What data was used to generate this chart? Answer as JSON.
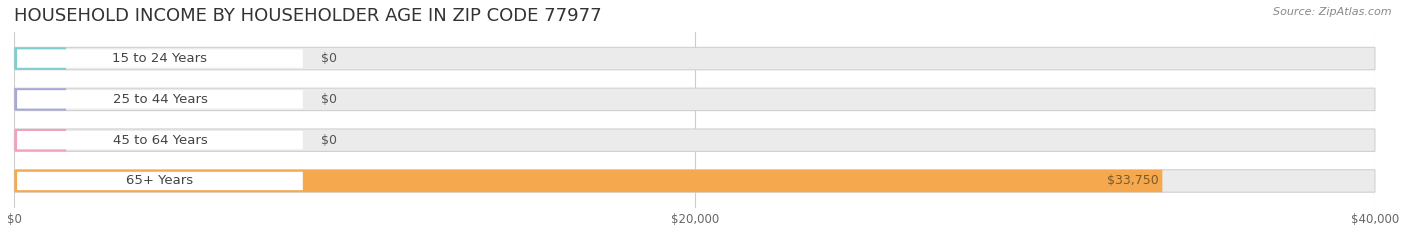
{
  "title": "HOUSEHOLD INCOME BY HOUSEHOLDER AGE IN ZIP CODE 77977",
  "source": "Source: ZipAtlas.com",
  "categories": [
    "15 to 24 Years",
    "25 to 44 Years",
    "45 to 64 Years",
    "65+ Years"
  ],
  "values": [
    0,
    0,
    0,
    33750
  ],
  "bar_colors": [
    "#7dcfcf",
    "#a8a8d8",
    "#f2a0bc",
    "#f5a84e"
  ],
  "background_color": "#ffffff",
  "bar_background_color": "#ebebeb",
  "bar_border_color": "#d0d0d0",
  "xlim": [
    0,
    40000
  ],
  "xticks": [
    0,
    20000,
    40000
  ],
  "xtick_labels": [
    "$0",
    "$20,000",
    "$40,000"
  ],
  "title_fontsize": 13,
  "bar_label_fontsize": 9.5,
  "value_label_fontsize": 9,
  "source_fontsize": 8
}
